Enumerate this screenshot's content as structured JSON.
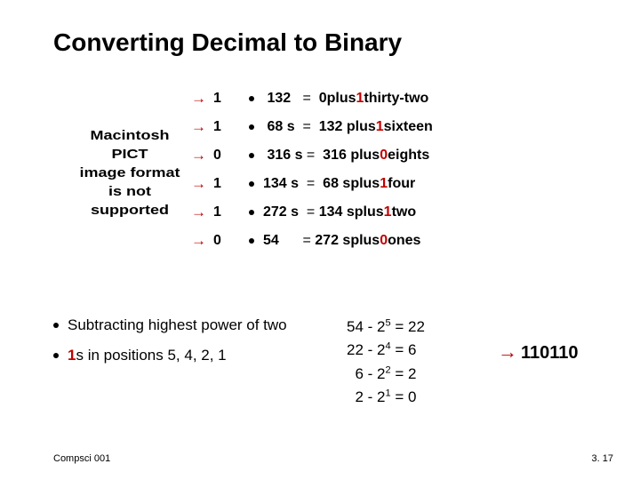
{
  "title": "Converting Decimal to Binary",
  "pict_lines": [
    "Macintosh PICT",
    "image format",
    "is not supported"
  ],
  "bits": [
    "1",
    "1",
    "0",
    "1",
    "1",
    "0"
  ],
  "steps": [
    {
      "lhs_n": "1",
      "lhs_u": "32",
      "eq": "=",
      "mid_n": "0",
      "mid_u": "",
      "plus": "plus",
      "pd": "1",
      "unit": "thirty-two"
    },
    {
      "lhs_n": "6",
      "lhs_u": "8 s",
      "eq": "=",
      "mid_n": "1",
      "mid_u": "32",
      "plus": "plus",
      "pd": "1",
      "unit": "sixteen"
    },
    {
      "lhs_n": "3",
      "lhs_u": "16 s",
      "eq": "=",
      "mid_n": "3",
      "mid_u": "16",
      "plus": "plus",
      "pd": "0",
      "unit": "eights"
    },
    {
      "lhs_n": "13",
      "lhs_u": "4 s",
      "eq": "=",
      "mid_n": "6",
      "mid_u": "8 s",
      "plus": "plus",
      "pd": "1",
      "unit": "four"
    },
    {
      "lhs_n": "27",
      "lhs_u": "2 s",
      "eq": "=",
      "mid_n": "13",
      "mid_u": "4 s",
      "plus": "plus",
      "pd": "1",
      "unit": "two"
    },
    {
      "lhs_n": "54",
      "lhs_u": "",
      "eq": "=",
      "mid_n": "27",
      "mid_u": "2 s",
      "plus": "plus",
      "pd": "0",
      "unit": "ones"
    }
  ],
  "lower_bullets": [
    {
      "pre": "Subtracting highest power of two",
      "red_lead": ""
    },
    {
      "pre": "s in positions 5, 4, 2, 1",
      "red_lead": "1"
    }
  ],
  "calc": [
    {
      "a": "54",
      "op": "-",
      "b": "2",
      "exp": "5",
      "rhs": "= 22"
    },
    {
      "a": "22",
      "op": "-",
      "b": "2",
      "exp": "4",
      "rhs": "= 6"
    },
    {
      "a": "  6",
      "op": "-",
      "b": "2",
      "exp": "2",
      "rhs": "= 2"
    },
    {
      "a": "  2",
      "op": "-",
      "b": "2",
      "exp": "1",
      "rhs": "= 0"
    }
  ],
  "result": "110110",
  "footer_left": "Compsci 001",
  "footer_right": "3. 17",
  "colors": {
    "accent": "#c00000",
    "text": "#000000",
    "bg": "#ffffff"
  }
}
